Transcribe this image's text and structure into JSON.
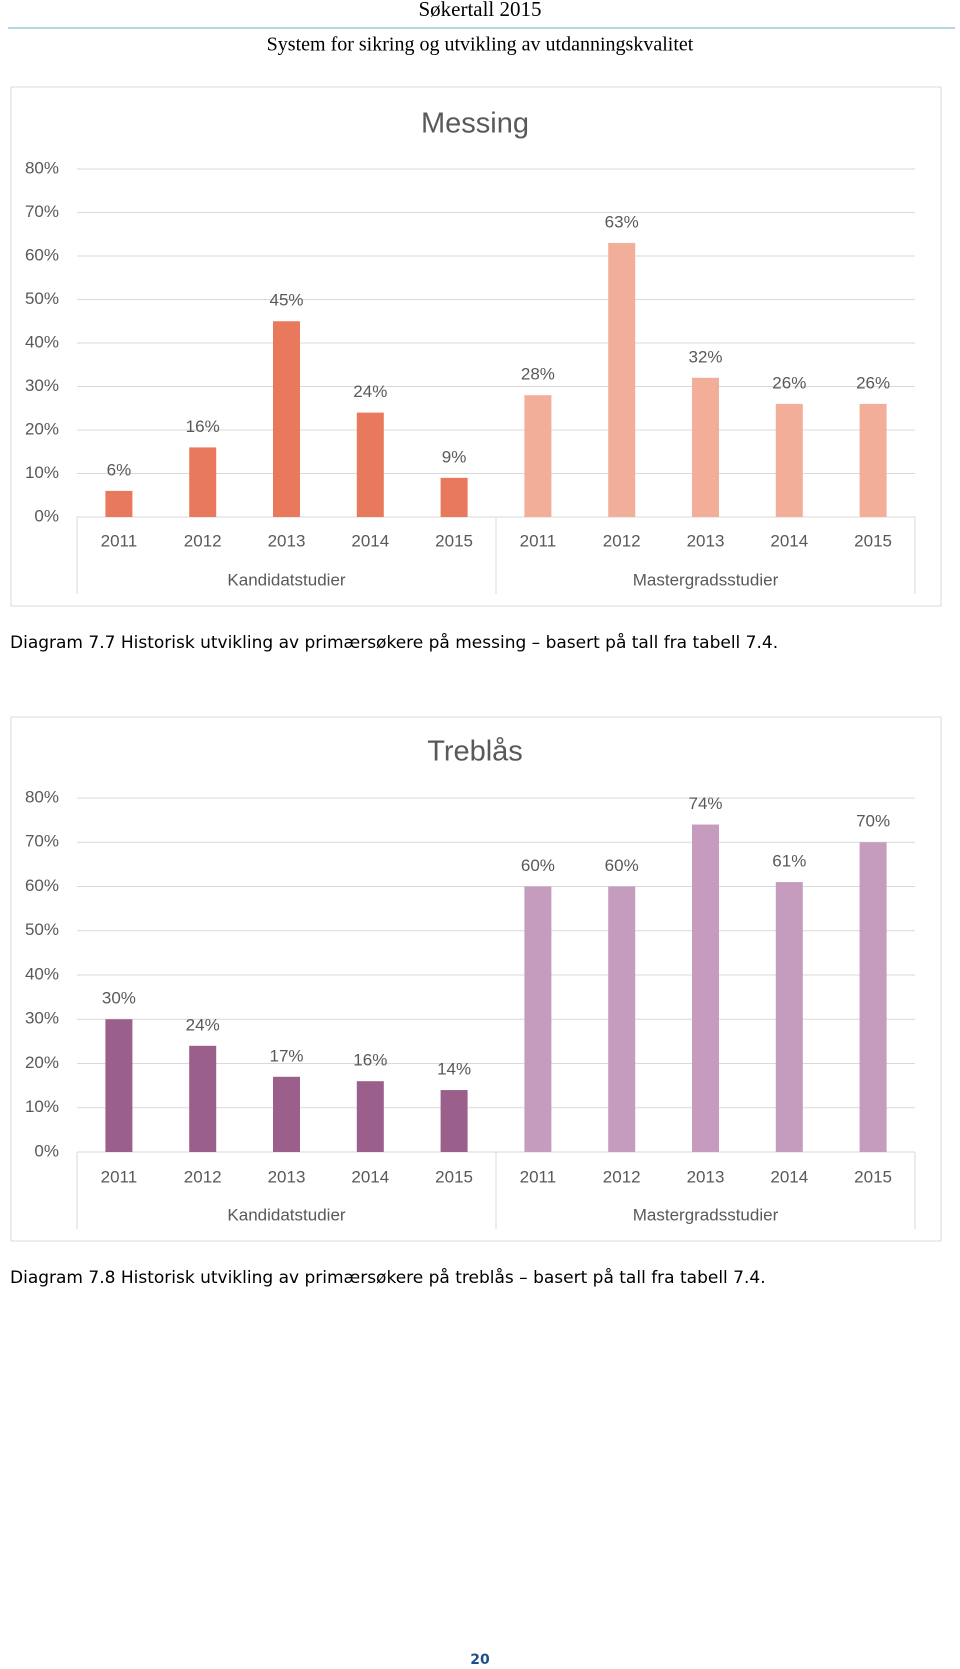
{
  "header": {
    "title": "Søkertall 2015",
    "subtitle": "System for sikring og utvikling av utdanningskvalitet"
  },
  "chart_data": [
    {
      "type": "bar",
      "title": "Messing",
      "caption": "Diagram 7.7 Historisk utvikling av primærsøkere på messing – basert på tall fra tabell 7.4.",
      "ylim": [
        0,
        80
      ],
      "yticks": [
        {
          "value": 0,
          "label": "0%"
        },
        {
          "value": 10,
          "label": "10%"
        },
        {
          "value": 20,
          "label": "20%"
        },
        {
          "value": 30,
          "label": "30%"
        },
        {
          "value": 40,
          "label": "40%"
        },
        {
          "value": 50,
          "label": "50%"
        },
        {
          "value": 60,
          "label": "60%"
        },
        {
          "value": 70,
          "label": "70%"
        },
        {
          "value": 80,
          "label": "80%"
        }
      ],
      "grid": true,
      "groups": [
        {
          "name": "Kandidatstudier",
          "color": "#e8795c",
          "categories": [
            "2011",
            "2012",
            "2013",
            "2014",
            "2015"
          ],
          "values": [
            6,
            16,
            45,
            24,
            9
          ],
          "value_labels": [
            "6%",
            "16%",
            "45%",
            "24%",
            "9%"
          ]
        },
        {
          "name": "Mastergradsstudier",
          "color": "#f3ae9a",
          "categories": [
            "2011",
            "2012",
            "2013",
            "2014",
            "2015"
          ],
          "values": [
            28,
            63,
            32,
            26,
            26
          ],
          "value_labels": [
            "28%",
            "63%",
            "32%",
            "26%",
            "26%"
          ]
        }
      ]
    },
    {
      "type": "bar",
      "title": "Treblås",
      "caption": "Diagram 7.8 Historisk utvikling av primærsøkere på treblås – basert på tall fra tabell 7.4.",
      "ylim": [
        0,
        80
      ],
      "yticks": [
        {
          "value": 0,
          "label": "0%"
        },
        {
          "value": 10,
          "label": "10%"
        },
        {
          "value": 20,
          "label": "20%"
        },
        {
          "value": 30,
          "label": "30%"
        },
        {
          "value": 40,
          "label": "40%"
        },
        {
          "value": 50,
          "label": "50%"
        },
        {
          "value": 60,
          "label": "60%"
        },
        {
          "value": 70,
          "label": "70%"
        },
        {
          "value": 80,
          "label": "80%"
        }
      ],
      "grid": true,
      "groups": [
        {
          "name": "Kandidatstudier",
          "color": "#9a5f8b",
          "categories": [
            "2011",
            "2012",
            "2013",
            "2014",
            "2015"
          ],
          "values": [
            30,
            24,
            17,
            16,
            14
          ],
          "value_labels": [
            "30%",
            "24%",
            "17%",
            "16%",
            "14%"
          ]
        },
        {
          "name": "Mastergradsstudier",
          "color": "#c59cbd",
          "categories": [
            "2011",
            "2012",
            "2013",
            "2014",
            "2015"
          ],
          "values": [
            60,
            60,
            74,
            61,
            70
          ],
          "value_labels": [
            "60%",
            "60%",
            "74%",
            "61%",
            "70%"
          ]
        }
      ]
    }
  ],
  "page_number": "20"
}
